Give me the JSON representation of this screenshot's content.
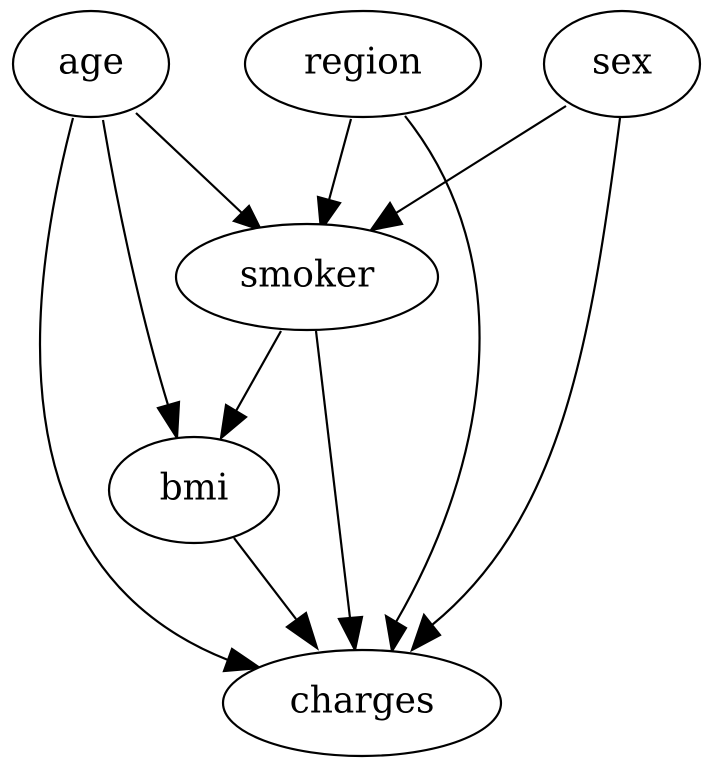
{
  "nodes": [
    {
      "id": "age",
      "label": "age"
    },
    {
      "id": "region",
      "label": "region"
    },
    {
      "id": "sex",
      "label": "sex"
    },
    {
      "id": "smoker",
      "label": "smoker"
    },
    {
      "id": "bmi",
      "label": "bmi"
    },
    {
      "id": "charges",
      "label": "charges"
    }
  ],
  "edges": [
    {
      "from": "age",
      "to": "smoker"
    },
    {
      "from": "age",
      "to": "bmi"
    },
    {
      "from": "age",
      "to": "charges"
    },
    {
      "from": "region",
      "to": "smoker"
    },
    {
      "from": "region",
      "to": "charges"
    },
    {
      "from": "sex",
      "to": "smoker"
    },
    {
      "from": "sex",
      "to": "charges"
    },
    {
      "from": "smoker",
      "to": "bmi"
    },
    {
      "from": "smoker",
      "to": "charges"
    },
    {
      "from": "bmi",
      "to": "charges"
    }
  ],
  "colors": {
    "stroke": "#000000",
    "fill": "#ffffff",
    "background": "#ffffff"
  }
}
